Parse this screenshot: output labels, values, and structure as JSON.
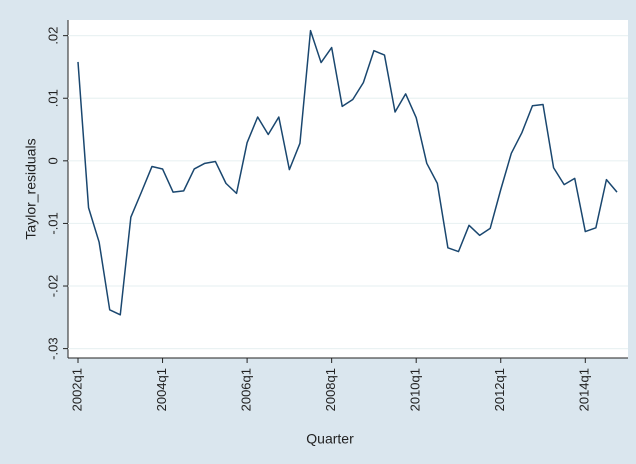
{
  "chart_data": {
    "type": "line",
    "xlabel": "Quarter",
    "ylabel": "Taylor_residuals",
    "categories": [
      "2002q1",
      null,
      null,
      null,
      null,
      null,
      null,
      null,
      "2004q1",
      null,
      null,
      null,
      null,
      null,
      null,
      null,
      "2006q1",
      null,
      null,
      null,
      null,
      null,
      null,
      null,
      "2008q1",
      null,
      null,
      null,
      null,
      null,
      null,
      null,
      "2010q1",
      null,
      null,
      null,
      null,
      null,
      null,
      null,
      "2012q1",
      null,
      null,
      null,
      null,
      null,
      null,
      null,
      "2014q1",
      null,
      null,
      null
    ],
    "series": [
      {
        "color": "#1a476f",
        "values": [
          0.0158,
          -0.0075,
          -0.013,
          -0.0238,
          -0.0246,
          -0.009,
          -0.005,
          -0.0009,
          -0.0013,
          -0.005,
          -0.0048,
          -0.0013,
          -0.0004,
          -0.0001,
          -0.0036,
          -0.0052,
          0.0029,
          0.007,
          0.0042,
          0.007,
          -0.0014,
          0.0028,
          0.0208,
          0.0157,
          0.0181,
          0.0087,
          0.0098,
          0.0125,
          0.0176,
          0.0169,
          0.0078,
          0.0107,
          0.0069,
          -0.0004,
          -0.0036,
          -0.0139,
          -0.0145,
          -0.0103,
          -0.0119,
          -0.0108,
          -0.0046,
          0.0012,
          0.0045,
          0.0088,
          0.009,
          -0.0011,
          -0.0038,
          -0.0028,
          -0.0113,
          -0.0107,
          -0.003,
          -0.005
        ]
      }
    ],
    "ylim": [
      -0.0315,
      0.0225
    ],
    "yticks": [
      {
        "value": -0.03,
        "label": "-.03"
      },
      {
        "value": -0.02,
        "label": "-.02"
      },
      {
        "value": -0.01,
        "label": "-.01"
      },
      0,
      {
        "value": 0.01,
        "label": ".01"
      },
      {
        "value": 0.02,
        "label": ".02"
      }
    ],
    "grid": true
  }
}
